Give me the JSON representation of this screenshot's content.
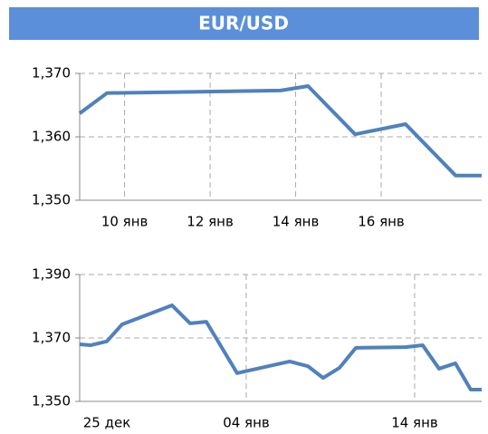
{
  "title": "EUR/USD",
  "chart_data": [
    {
      "type": "line",
      "series": [
        {
          "name": "EUR/USD",
          "color": "#4f81bd",
          "x": [
            8.95,
            9.59,
            13.65,
            14.29,
            15.39,
            16.57,
            17.74,
            18.35
          ],
          "values": [
            1.3637,
            1.3669,
            1.3673,
            1.368,
            1.3604,
            1.362,
            1.3539,
            1.3539
          ]
        }
      ],
      "xlim": [
        8.95,
        18.35
      ],
      "xticks": [
        {
          "value": 10,
          "label": "10 янв"
        },
        {
          "value": 12,
          "label": "12 янв"
        },
        {
          "value": 14,
          "label": "14 янв"
        },
        {
          "value": 16,
          "label": "16 янв"
        }
      ],
      "ylim": [
        1.35,
        1.37
      ],
      "yticks": [
        {
          "value": 1.35,
          "label": "1,350"
        },
        {
          "value": 1.36,
          "label": "1,360"
        },
        {
          "value": 1.37,
          "label": "1,370"
        }
      ],
      "grid": true
    },
    {
      "type": "line",
      "series": [
        {
          "name": "EUR/USD",
          "color": "#4f81bd",
          "x": [
            0.11,
            0.75,
            1.72,
            2.63,
            5.59,
            6.67,
            7.63,
            9.46,
            12.58,
            13.66,
            14.57,
            15.54,
            16.51,
            19.46,
            20.48,
            21.45,
            22.42,
            23.33,
            23.98
          ],
          "values": [
            1.368,
            1.3677,
            1.3689,
            1.3743,
            1.3803,
            1.3746,
            1.3751,
            1.3589,
            1.3626,
            1.3611,
            1.3574,
            1.3606,
            1.3669,
            1.3671,
            1.3677,
            1.3603,
            1.362,
            1.3537,
            1.3537
          ]
        }
      ],
      "xlim": [
        0.11,
        23.98
      ],
      "xticks": [
        {
          "value": 0,
          "label": "25 дек"
        },
        {
          "value": 10,
          "label": "04 янв"
        },
        {
          "value": 20,
          "label": "14 янв"
        }
      ],
      "ylim": [
        1.35,
        1.39
      ],
      "yticks": [
        {
          "value": 1.35,
          "label": "1,350"
        },
        {
          "value": 1.37,
          "label": "1,370"
        },
        {
          "value": 1.39,
          "label": "1,390"
        }
      ],
      "grid": true
    }
  ]
}
